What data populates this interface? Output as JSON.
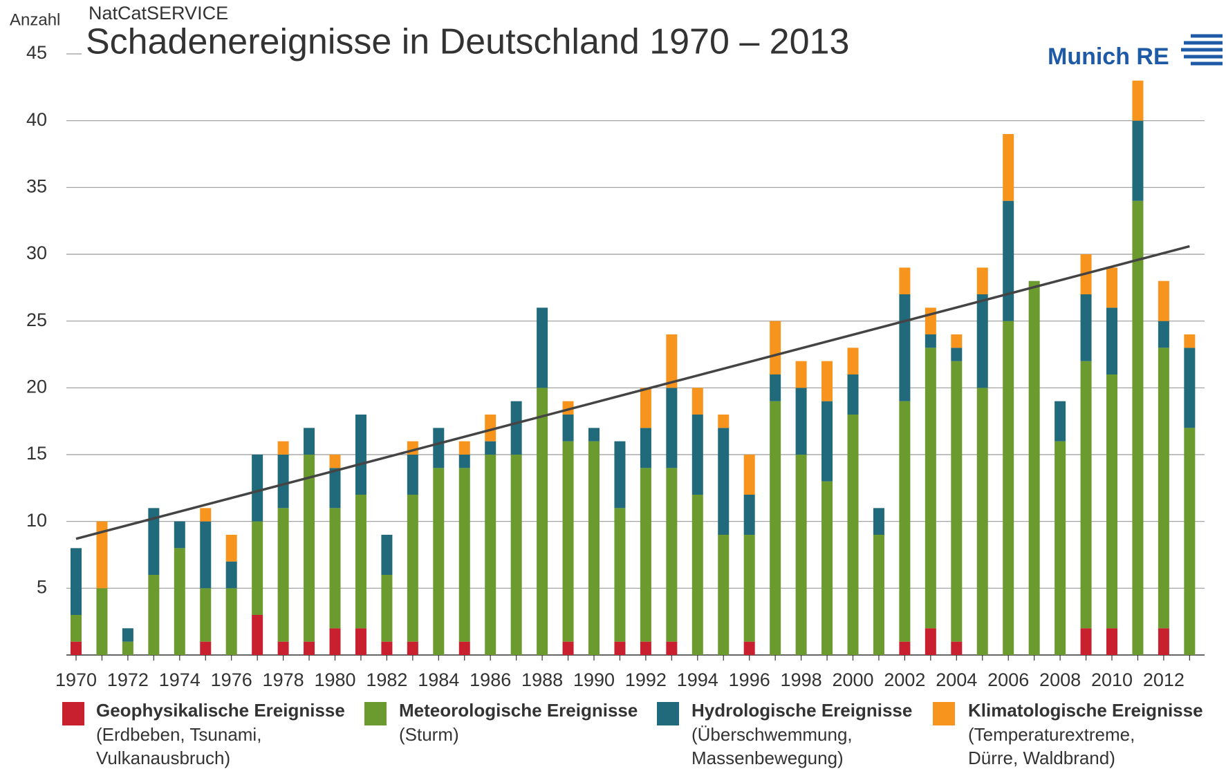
{
  "chart_data": {
    "type": "stacked_bar",
    "corner_label": "NatCatSERVICE",
    "title": "Schadenereignisse in Deutschland 1970 – 2013",
    "brand": "Munich RE",
    "y_label": "Anzahl",
    "categories": [
      "1970",
      null,
      "1972",
      null,
      "1974",
      null,
      "1976",
      null,
      "1978",
      null,
      "1980",
      null,
      "1982",
      null,
      "1984",
      null,
      "1986",
      null,
      "1988",
      null,
      "1990",
      null,
      "1992",
      null,
      "1994",
      null,
      "1996",
      null,
      "1998",
      null,
      "2000",
      null,
      "2002",
      null,
      "2004",
      null,
      "2006",
      null,
      "2008",
      null,
      "2010",
      null,
      "2012",
      null
    ],
    "series": [
      {
        "name": "Geophysikalische Ereignisse",
        "description": [
          "(Erdbeben, Tsunami,",
          "Vulkanausbruch)"
        ],
        "color": "#c8202f",
        "values": [
          1,
          0,
          0,
          0,
          0,
          1,
          0,
          3,
          1,
          1,
          2,
          2,
          1,
          1,
          0,
          1,
          0,
          0,
          0,
          1,
          0,
          1,
          1,
          1,
          0,
          0,
          1,
          0,
          0,
          0,
          0,
          0,
          1,
          2,
          1,
          0,
          0,
          0,
          0,
          2,
          2,
          0,
          2,
          0
        ]
      },
      {
        "name": "Meteorologische Ereignisse",
        "description": [
          "(Sturm)"
        ],
        "color": "#6b9a2f",
        "values": [
          2,
          5,
          1,
          6,
          8,
          4,
          5,
          7,
          10,
          14,
          9,
          10,
          5,
          11,
          14,
          13,
          15,
          15,
          20,
          15,
          16,
          10,
          13,
          13,
          12,
          9,
          8,
          19,
          15,
          13,
          18,
          9,
          18,
          21,
          21,
          20,
          25,
          28,
          16,
          20,
          19,
          34,
          21,
          17
        ]
      },
      {
        "name": "Hydrologische Ereignisse",
        "description": [
          "(Überschwemmung,",
          "Massenbewegung)"
        ],
        "color": "#216a7b",
        "values": [
          5,
          0,
          1,
          5,
          2,
          5,
          2,
          5,
          4,
          2,
          3,
          6,
          3,
          3,
          3,
          1,
          1,
          4,
          6,
          2,
          1,
          5,
          3,
          6,
          6,
          8,
          3,
          2,
          5,
          6,
          3,
          2,
          8,
          1,
          1,
          7,
          9,
          0,
          3,
          5,
          5,
          6,
          2,
          6
        ]
      },
      {
        "name": "Klimatologische Ereignisse",
        "description": [
          "(Temperaturextreme,",
          "Dürre, Waldbrand)"
        ],
        "color": "#f7941d",
        "values": [
          0,
          5,
          0,
          0,
          0,
          1,
          2,
          0,
          1,
          0,
          1,
          0,
          0,
          1,
          0,
          1,
          2,
          0,
          0,
          1,
          0,
          0,
          3,
          4,
          2,
          1,
          3,
          4,
          2,
          3,
          2,
          0,
          2,
          2,
          1,
          2,
          5,
          0,
          0,
          3,
          3,
          3,
          3,
          1
        ]
      }
    ],
    "trend_line": {
      "values": [
        8.7,
        30.6
      ],
      "color": "#444444"
    },
    "ylim": [
      0,
      45
    ],
    "yticks": [
      5,
      10,
      15,
      20,
      25,
      30,
      35,
      40,
      45
    ],
    "grid": true
  }
}
